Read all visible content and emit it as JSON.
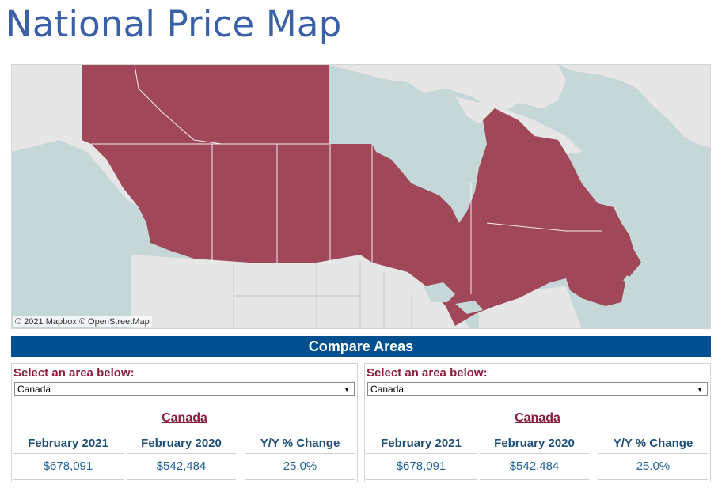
{
  "page": {
    "title": "National Price Map"
  },
  "map": {
    "attribution": "© 2021 Mapbox © OpenStreetMap",
    "colors": {
      "water": "#c5d7d7",
      "land": "#e6e6e6",
      "highlight": "#a0475a",
      "border": "#ffffff"
    }
  },
  "compare": {
    "title": "Compare Areas",
    "panels": [
      {
        "select_label": "Select an area below:",
        "selected": "Canada",
        "area_name": "Canada",
        "columns": [
          {
            "header": "February 2021",
            "value": "$678,091"
          },
          {
            "header": "February 2020",
            "value": "$542,484"
          },
          {
            "header": "Y/Y % Change",
            "value": "25.0%"
          }
        ]
      },
      {
        "select_label": "Select an area below:",
        "selected": "Canada",
        "area_name": "Canada",
        "columns": [
          {
            "header": "February 2021",
            "value": "$678,091"
          },
          {
            "header": "February 2020",
            "value": "$542,484"
          },
          {
            "header": "Y/Y % Change",
            "value": "25.0%"
          }
        ]
      }
    ]
  }
}
